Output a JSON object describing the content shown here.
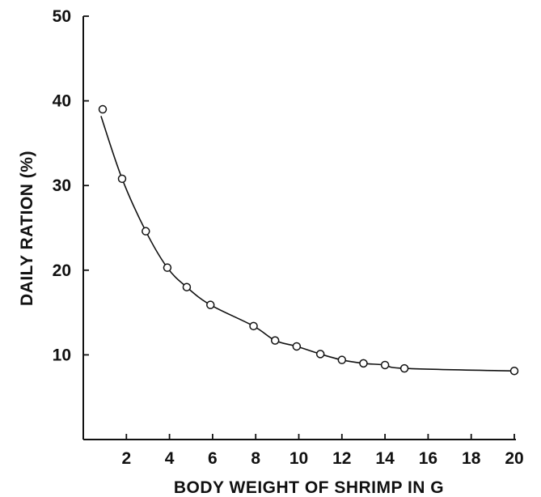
{
  "chart_data": {
    "type": "scatter",
    "title": "",
    "xlabel": "BODY WEIGHT OF SHRIMP IN G",
    "ylabel": "DAILY RATION (%)",
    "xlim": [
      0,
      20
    ],
    "ylim": [
      0,
      50
    ],
    "x_ticks": [
      2,
      4,
      6,
      8,
      10,
      12,
      14,
      16,
      18,
      20
    ],
    "y_ticks": [
      10,
      20,
      30,
      40,
      50
    ],
    "grid": false,
    "legend": "none",
    "series": [
      {
        "marker": "open-circle",
        "fitted_curve": true,
        "points": [
          {
            "x": 0.9,
            "y": 39.0
          },
          {
            "x": 1.8,
            "y": 30.8
          },
          {
            "x": 2.9,
            "y": 24.6
          },
          {
            "x": 3.9,
            "y": 20.3
          },
          {
            "x": 4.8,
            "y": 18.0
          },
          {
            "x": 5.9,
            "y": 15.9
          },
          {
            "x": 7.9,
            "y": 13.4
          },
          {
            "x": 8.9,
            "y": 11.7
          },
          {
            "x": 9.9,
            "y": 11.0
          },
          {
            "x": 11.0,
            "y": 10.1
          },
          {
            "x": 12.0,
            "y": 9.4
          },
          {
            "x": 13.0,
            "y": 9.0
          },
          {
            "x": 14.0,
            "y": 8.8
          },
          {
            "x": 14.9,
            "y": 8.4
          },
          {
            "x": 20.0,
            "y": 8.1
          }
        ]
      }
    ]
  }
}
